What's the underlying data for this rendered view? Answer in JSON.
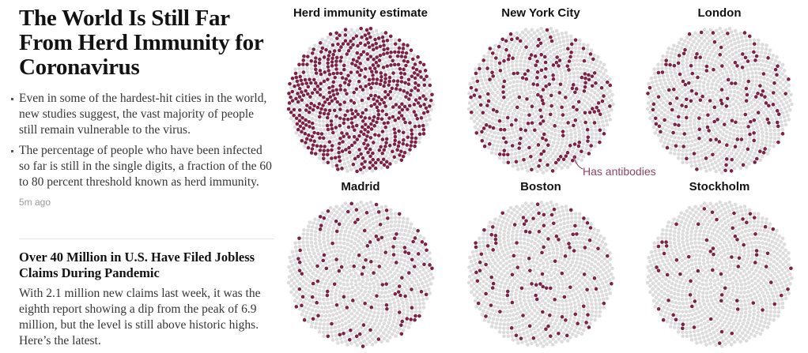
{
  "lead_story": {
    "headline": "The World Is Still Far From Herd Immunity for Coronavirus",
    "bullets": [
      "Even in some of the hardest-hit cities in the world, new studies suggest, the vast majority of people still remain vulnerable to the virus.",
      "The percentage of people who have been infected so far is still in the single digits, a fraction of the 60 to 80 percent threshold known as herd immunity."
    ],
    "timestamp": "5m ago"
  },
  "second_story": {
    "headline": "Over 40 Million in U.S. Have Filed Jobless Claims During Pandemic",
    "summary": "With 2.1 million new claims last week, it was the eighth report showing a dip from the peak of 6.9 million, but the level is still above historic highs. Here’s the latest."
  },
  "graphic": {
    "annotation": "Has antibodies",
    "colors": {
      "antibodies": "#7b2246",
      "no_antibodies": "#dcdcdc"
    },
    "panels": [
      {
        "title": "Herd immunity estimate",
        "share_with_antibodies": 0.6
      },
      {
        "title": "New York City",
        "share_with_antibodies": 0.2
      },
      {
        "title": "London",
        "share_with_antibodies": 0.17
      },
      {
        "title": "Madrid",
        "share_with_antibodies": 0.11
      },
      {
        "title": "Boston",
        "share_with_antibodies": 0.1
      },
      {
        "title": "Stockholm",
        "share_with_antibodies": 0.07
      }
    ]
  }
}
